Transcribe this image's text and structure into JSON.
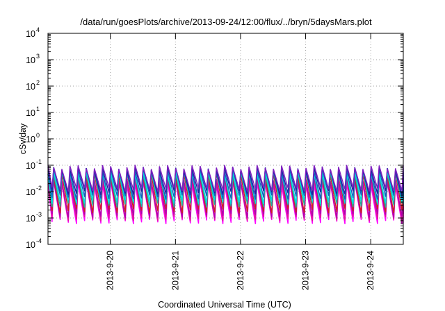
{
  "chart_data": {
    "type": "line",
    "title": "/data/run/goesPlots/archive/2013-09-24/12:00/flux/../bryn/5daysMars.plot",
    "xlabel": "Coordinated Universal Time (UTC)",
    "ylabel": "cSv/day",
    "yscale": "log",
    "ylim": [
      0.0001,
      10000
    ],
    "y_ticks": [
      {
        "base": "10",
        "exp": "-4"
      },
      {
        "base": "10",
        "exp": "-3"
      },
      {
        "base": "10",
        "exp": "-2"
      },
      {
        "base": "10",
        "exp": "-1"
      },
      {
        "base": "10",
        "exp": "0"
      },
      {
        "base": "10",
        "exp": "1"
      },
      {
        "base": "10",
        "exp": "2"
      },
      {
        "base": "10",
        "exp": "3"
      },
      {
        "base": "10",
        "exp": "4"
      }
    ],
    "xlim": [
      "2013-09-19 01:00",
      "2013-09-24 12:00"
    ],
    "x_ticks": [
      "2013-9-20",
      "2013-9-21",
      "2013-9-22",
      "2013-9-23",
      "2013-9-24"
    ],
    "grid": true,
    "oscillation_period_hours": 3,
    "series": [
      {
        "color": "#ff00ff",
        "peak": 0.02,
        "trough": 0.0007
      },
      {
        "color": "#e0169a",
        "peak": 0.025,
        "trough": 0.0009
      },
      {
        "color": "#b000b0",
        "peak": 0.03,
        "trough": 0.0012
      },
      {
        "color": "#d02020",
        "peak": 0.045,
        "trough": 0.0018
      },
      {
        "color": "#20b0a0",
        "peak": 0.05,
        "trough": 0.003
      },
      {
        "color": "#00e0e0",
        "peak": 0.055,
        "trough": 0.004
      },
      {
        "color": "#1060c0",
        "peak": 0.065,
        "trough": 0.006
      },
      {
        "color": "#2020a0",
        "peak": 0.075,
        "trough": 0.009
      },
      {
        "color": "#8020c0",
        "peak": 0.085,
        "trough": 0.012
      }
    ]
  }
}
